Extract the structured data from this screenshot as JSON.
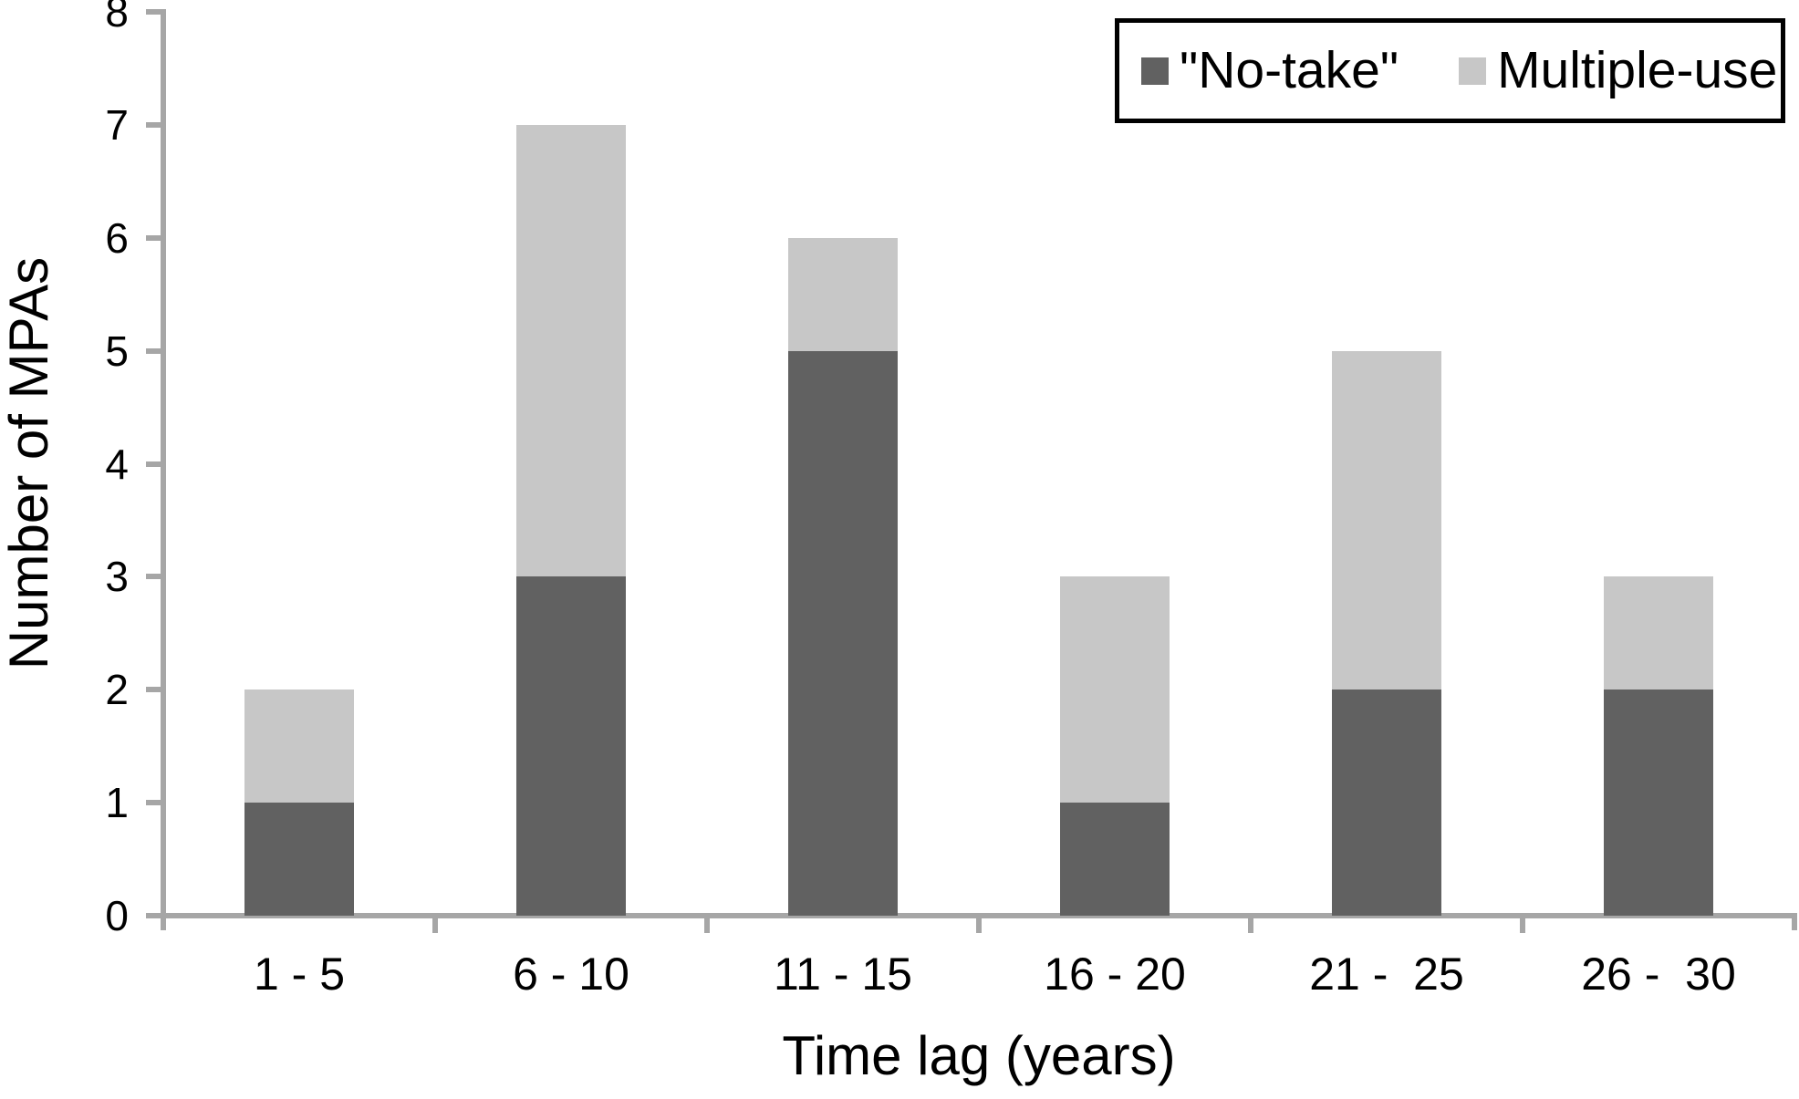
{
  "chart_data": {
    "type": "bar",
    "stacked": true,
    "xlabel": "Time lag (years)",
    "ylabel": "Number of MPAs",
    "categories": [
      "1 - 5",
      "6 - 10",
      "11 - 15",
      "16 - 20",
      "21 -  25",
      "26 -  30"
    ],
    "series": [
      {
        "name": "\"No-take\"",
        "color": "#616161",
        "values": [
          1,
          3,
          5,
          1,
          2,
          2
        ]
      },
      {
        "name": "Multiple-use",
        "color": "#c7c7c7",
        "values": [
          1,
          4,
          1,
          2,
          3,
          1
        ]
      }
    ],
    "ylim": [
      0,
      8
    ],
    "yticks": [
      "0",
      "1",
      "2",
      "3",
      "4",
      "5",
      "6",
      "7",
      "8"
    ],
    "grid": false,
    "legend_position": "top-right",
    "axis_color": "#a6a6a6",
    "text_color": "#000000",
    "legend_border_color": "#000000"
  }
}
